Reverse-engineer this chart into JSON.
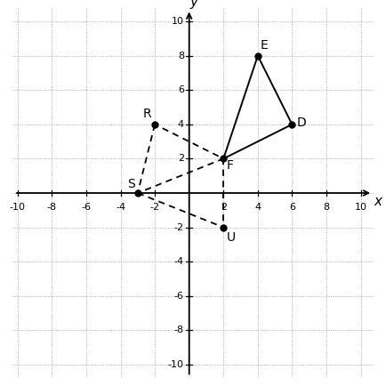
{
  "triangle_DEF": {
    "D": [
      6,
      4
    ],
    "E": [
      4,
      8
    ],
    "F": [
      2,
      2
    ]
  },
  "triangle_RSF": {
    "R": [
      -2,
      4
    ],
    "S": [
      -3,
      0
    ],
    "F": [
      2,
      2
    ]
  },
  "point_U": [
    2,
    -2
  ],
  "axis_range": [
    -10,
    10
  ],
  "grid_color": "#999999",
  "background_color": "#ffffff",
  "dot_color": "#000000",
  "solid_line_color": "#000000",
  "dashed_line_color": "#000000",
  "label_fontsize": 10,
  "tick_fontsize": 8,
  "axis_label_fontsize": 11
}
